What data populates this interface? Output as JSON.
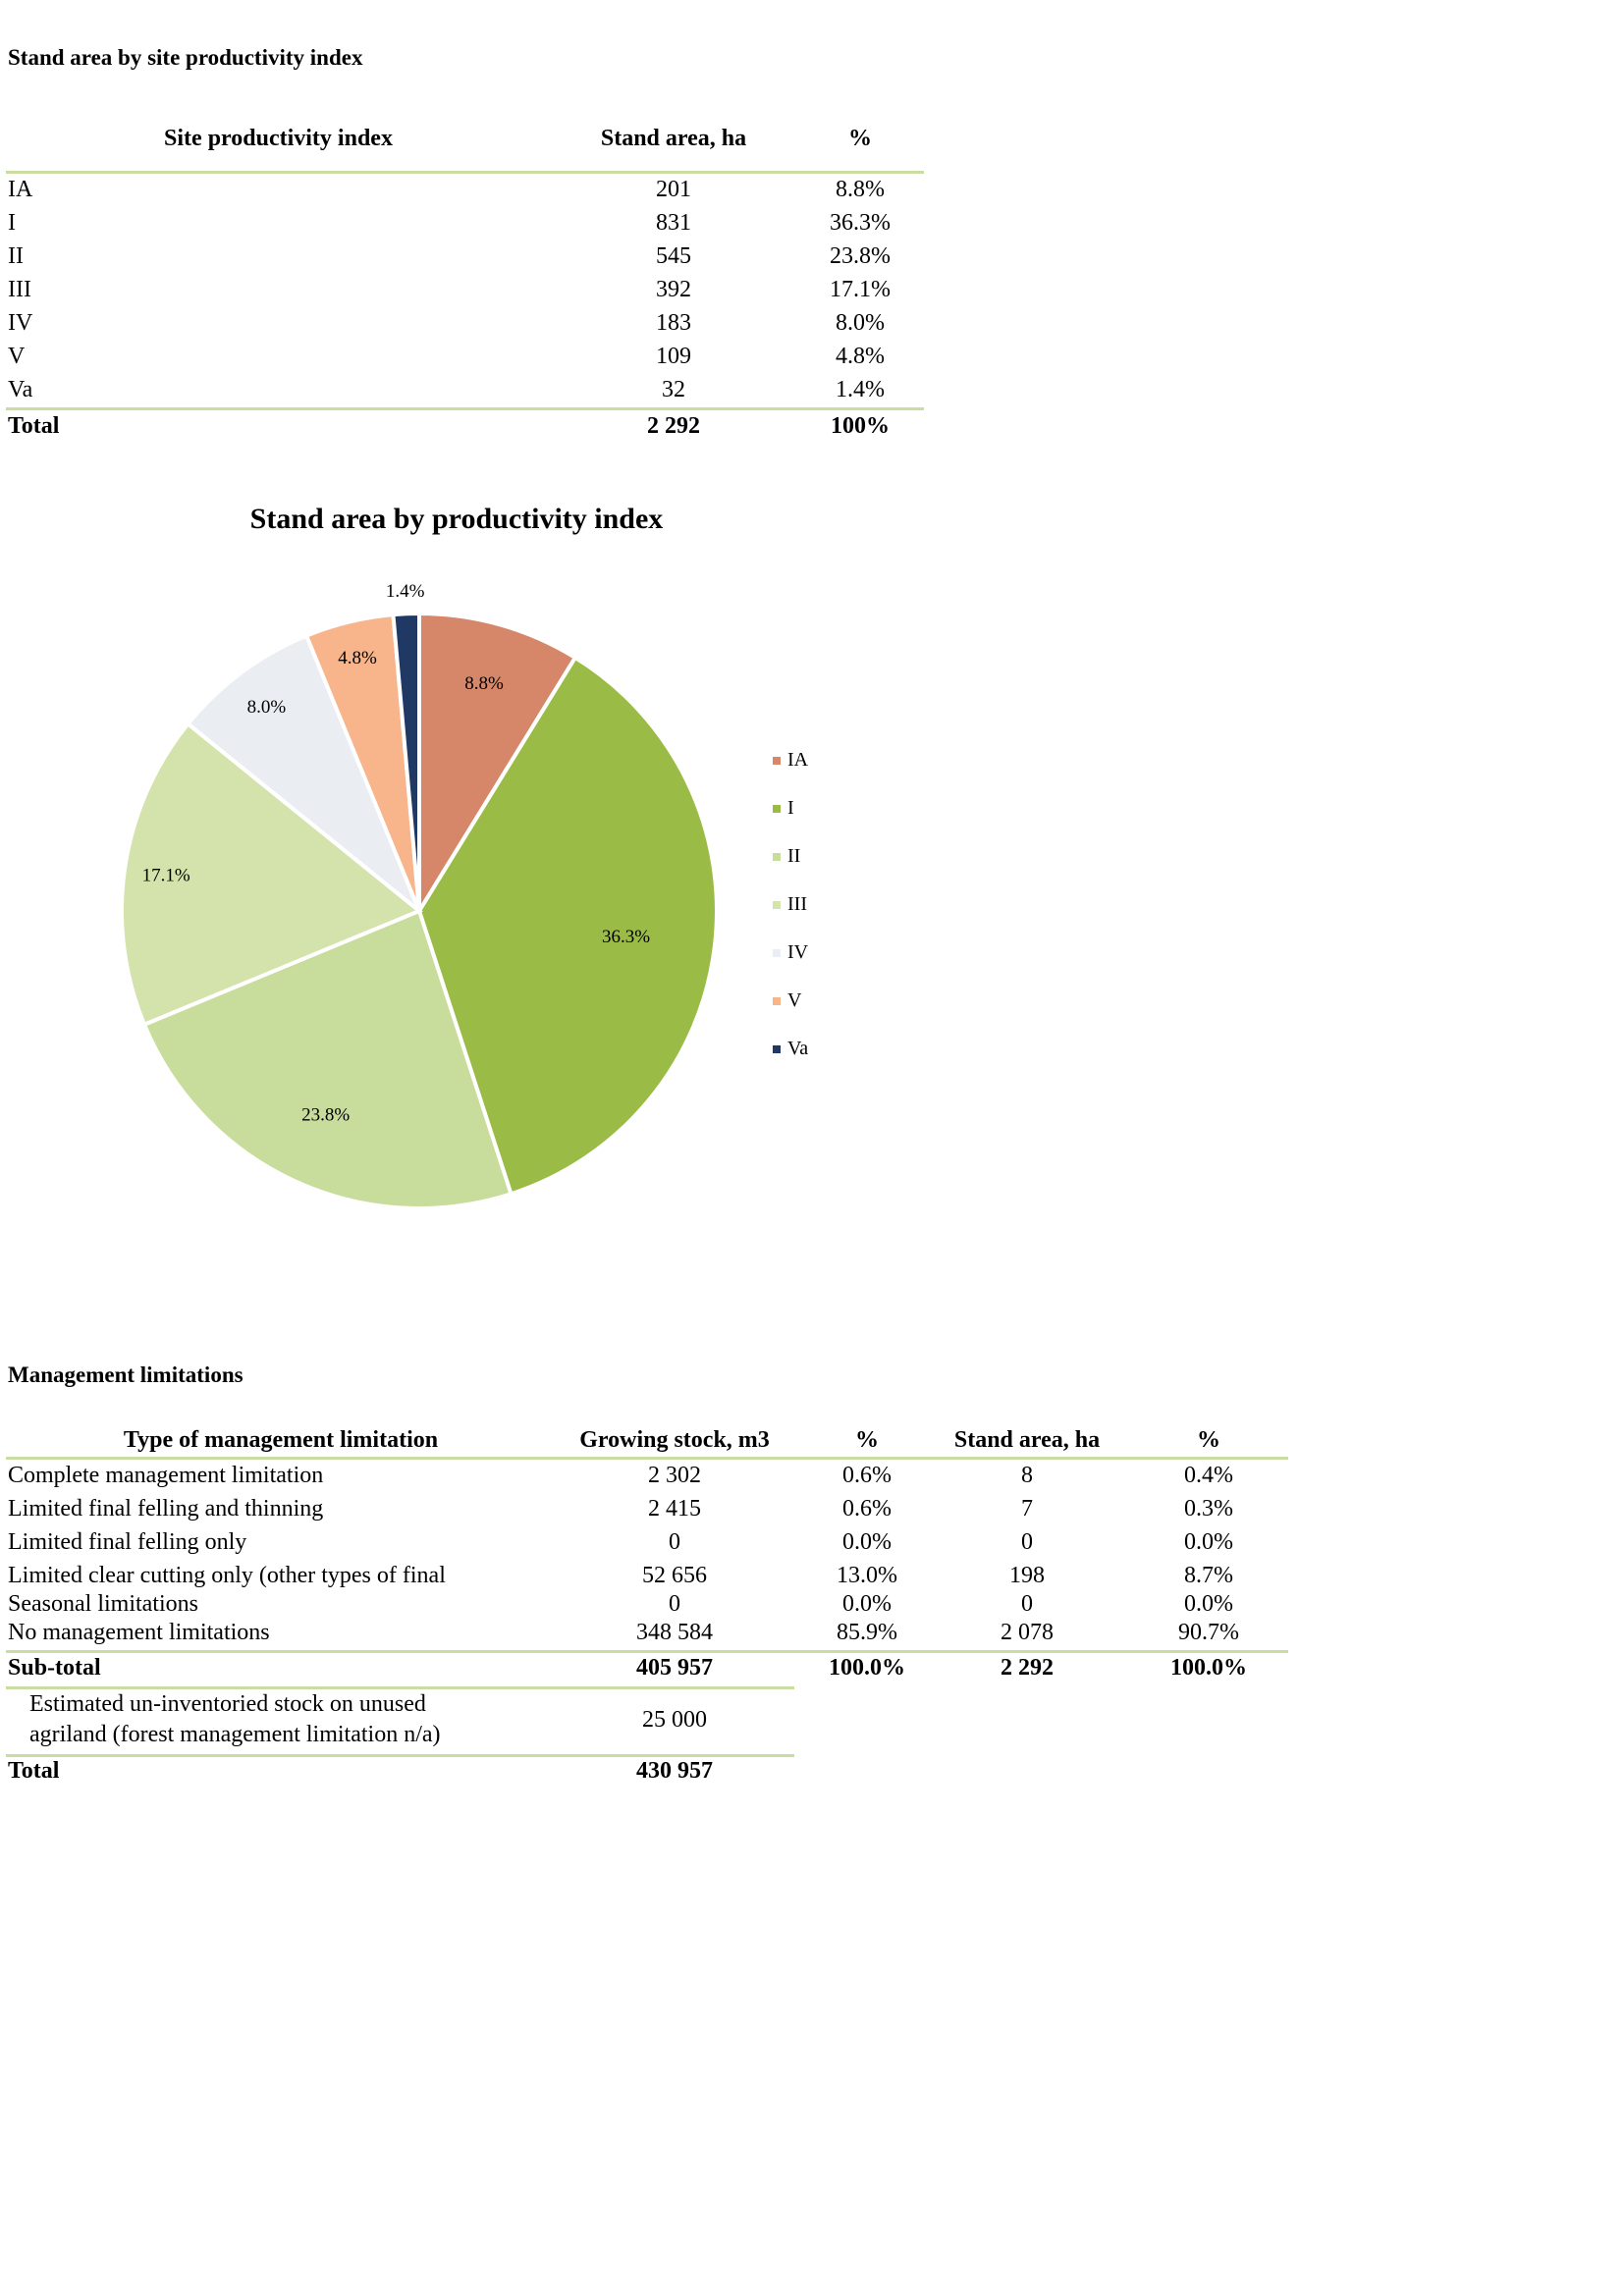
{
  "section1": {
    "title": "Stand area by site productivity index",
    "headers": [
      "Site productivity index",
      "Stand area, ha",
      "%"
    ],
    "rows": [
      [
        "IA",
        "201",
        "8.8%"
      ],
      [
        "I",
        "831",
        "36.3%"
      ],
      [
        "II",
        "545",
        "23.8%"
      ],
      [
        "III",
        "392",
        "17.1%"
      ],
      [
        "IV",
        "183",
        "8.0%"
      ],
      [
        "V",
        "109",
        "4.8%"
      ],
      [
        "Va",
        "32",
        "1.4%"
      ]
    ],
    "total": [
      "Total",
      "2 292",
      "100%"
    ]
  },
  "chart_data": {
    "type": "pie",
    "title": "Stand area by productivity index",
    "categories": [
      "IA",
      "I",
      "II",
      "III",
      "IV",
      "V",
      "Va"
    ],
    "values": [
      8.8,
      36.3,
      23.8,
      17.1,
      8.0,
      4.8,
      1.4
    ],
    "labels": [
      "8.8%",
      "36.3%",
      "23.8%",
      "17.1%",
      "8.0%",
      "4.8%",
      "1.4%"
    ],
    "colors": [
      "#d6876a",
      "#9bbb47",
      "#c8dc9c",
      "#d3e3ab",
      "#eaeef3",
      "#f8b48a",
      "#1f3864"
    ],
    "legend": "right"
  },
  "section2": {
    "title": "Management limitations",
    "headers": [
      "Type of management limitation",
      "Growing stock, m3",
      "%",
      "Stand area, ha",
      "%"
    ],
    "rows": [
      [
        "Complete management limitation",
        "2 302",
        "0.6%",
        "8",
        "0.4%"
      ],
      [
        "Limited final felling and thinning",
        "2 415",
        "0.6%",
        "7",
        "0.3%"
      ],
      [
        "Limited final felling only",
        "0",
        "0.0%",
        "0",
        "0.0%"
      ],
      [
        "Limited clear cutting only (other types of final",
        "52 656",
        "13.0%",
        "198",
        "8.7%"
      ],
      [
        "Seasonal limitations",
        "0",
        "0.0%",
        "0",
        "0.0%"
      ],
      [
        "No management limitations",
        "348 584",
        "85.9%",
        "2 078",
        "90.7%"
      ]
    ],
    "subtotal": [
      "Sub-total",
      "405 957",
      "100.0%",
      "2 292",
      "100.0%"
    ],
    "unused": {
      "line1": "Estimated un-inventoried stock on unused",
      "line2": "agriland (forest management limitation n/a)",
      "value": "25 000"
    },
    "total": [
      "Total",
      "430 957"
    ]
  }
}
